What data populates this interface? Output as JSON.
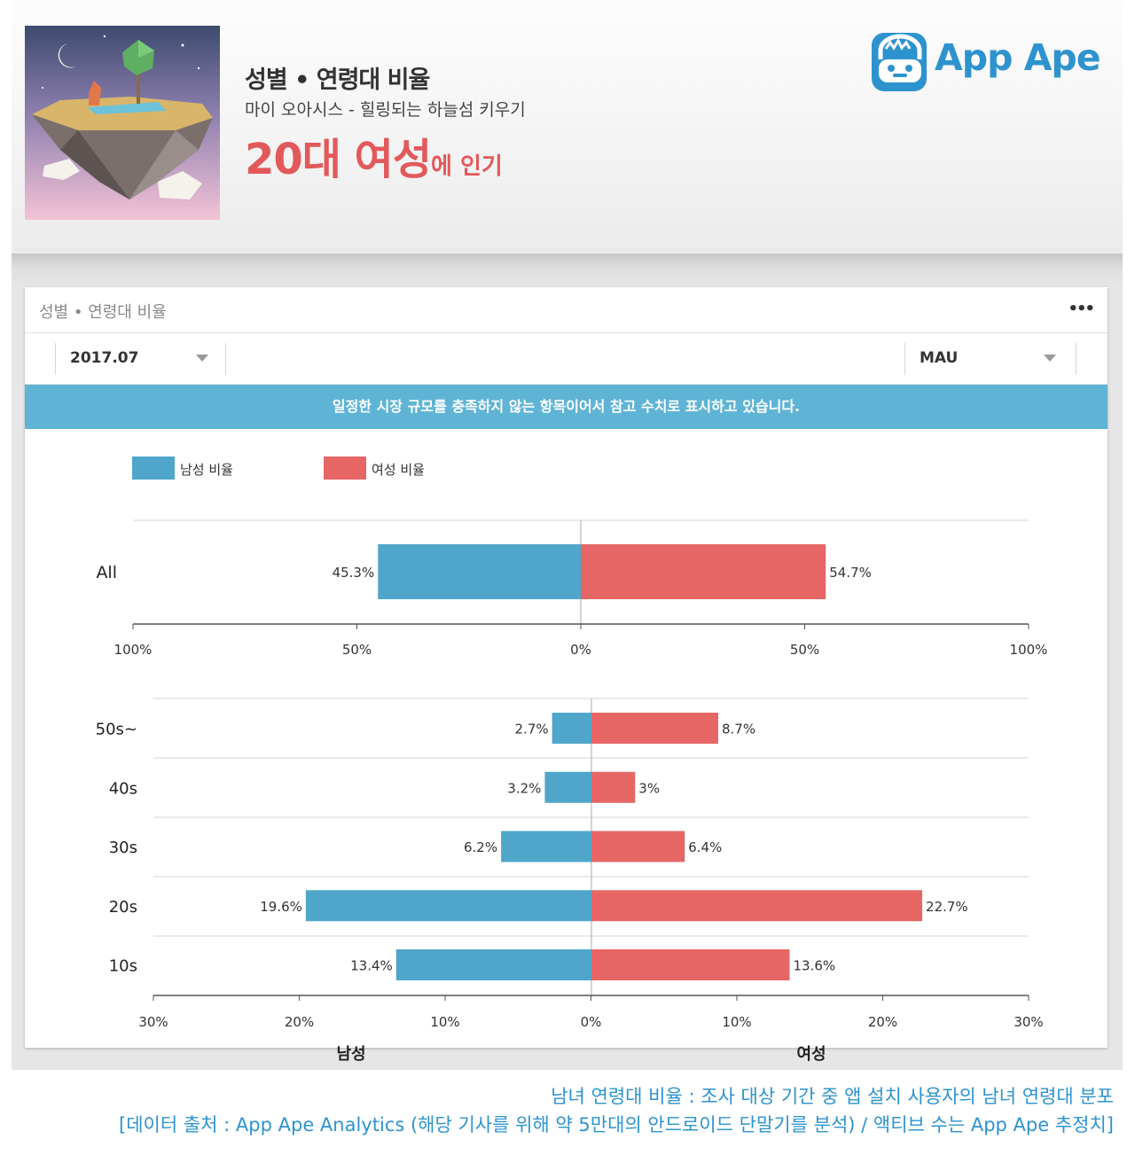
{
  "header": {
    "title": "성별 • 연령대 비율",
    "app_name": "마이 오아시스 - 힐링되는 하늘섬 키우기",
    "highlight_big": "20대 여성",
    "highlight_small": "에 인기",
    "logo_text": "App Ape"
  },
  "card": {
    "title": "성별 • 연령대 비율",
    "menu": "•••",
    "period_select": "2017.07",
    "metric_select": "MAU",
    "notice": "일정한 시장 규모를 충족하지 않는 항목이어서 참고 수치로 표시하고 있습니다."
  },
  "legend": {
    "male": "남성 비율",
    "female": "여성 비율"
  },
  "colors": {
    "male": "#4fa6ca",
    "female": "#e66666",
    "accent": "#e2595b",
    "brand": "#2d93cf"
  },
  "chart_data": [
    {
      "type": "bar",
      "orientation": "horizontal-diverging",
      "categories": [
        "All"
      ],
      "series": [
        {
          "name": "남성 비율",
          "values": [
            45.3
          ],
          "labels": [
            "45.3%"
          ]
        },
        {
          "name": "여성 비율",
          "values": [
            54.7
          ],
          "labels": [
            "54.7%"
          ]
        }
      ],
      "xlim": [
        -100,
        100
      ],
      "ticks": [
        "100%",
        "50%",
        "0%",
        "50%",
        "100%"
      ]
    },
    {
      "type": "bar",
      "orientation": "horizontal-diverging",
      "categories": [
        "50s~",
        "40s",
        "30s",
        "20s",
        "10s"
      ],
      "series": [
        {
          "name": "남성 비율",
          "values": [
            2.7,
            3.2,
            6.2,
            19.6,
            13.4
          ],
          "labels": [
            "2.7%",
            "3.2%",
            "6.2%",
            "19.6%",
            "13.4%"
          ]
        },
        {
          "name": "여성 비율",
          "values": [
            8.7,
            3.0,
            6.4,
            22.7,
            13.6
          ],
          "labels": [
            "8.7%",
            "3%",
            "6.4%",
            "22.7%",
            "13.6%"
          ]
        }
      ],
      "xlim": [
        -30,
        30
      ],
      "ticks": [
        "30%",
        "20%",
        "10%",
        "0%",
        "10%",
        "20%",
        "30%"
      ],
      "xlabel_left": "남성",
      "xlabel_right": "여성"
    }
  ],
  "footer": {
    "line1": "남녀 연령대 비율 : 조사 대상 기간 중 앱 설치 사용자의 남녀 연령대 분포",
    "line2": "[데이터 출처 : App Ape Analytics (해당 기사를 위해 약 5만대의 안드로이드 단말기를 분석) / 액티브 수는 App Ape 추정치]"
  }
}
